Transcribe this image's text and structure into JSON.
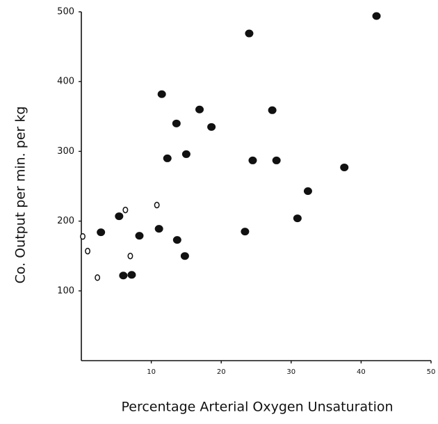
{
  "chart_data": {
    "type": "scatter",
    "x_label": "Percentage Arterial Oxygen Unsaturation",
    "y_label": "Co. Output per min. per kg",
    "xlim": [
      0,
      50
    ],
    "xticks": [
      10,
      20,
      30,
      40,
      50
    ],
    "ylim": [
      0,
      500
    ],
    "yticks": [
      100,
      200,
      300,
      400,
      500
    ],
    "series": [
      {
        "color": "#111111",
        "marker": "filled",
        "x": [
          2.8,
          5.4,
          6.0,
          7.2,
          8.3,
          11.1,
          11.5,
          12.3,
          13.6,
          13.7,
          14.8,
          15.0,
          16.9,
          18.6,
          23.4,
          24.0,
          24.5,
          27.3,
          27.9,
          30.9,
          32.4,
          37.6,
          42.2
        ],
        "values": [
          184,
          207,
          122,
          123,
          179,
          189,
          382,
          290,
          340,
          173,
          150,
          296,
          360,
          335,
          185,
          469,
          287,
          359,
          287,
          204,
          243,
          277,
          494
        ]
      },
      {
        "color": "#111111",
        "marker": "open",
        "x": [
          0.2,
          0.9,
          2.3,
          6.3,
          7.0,
          10.8
        ],
        "values": [
          178,
          157,
          119,
          216,
          150,
          223
        ]
      }
    ]
  }
}
